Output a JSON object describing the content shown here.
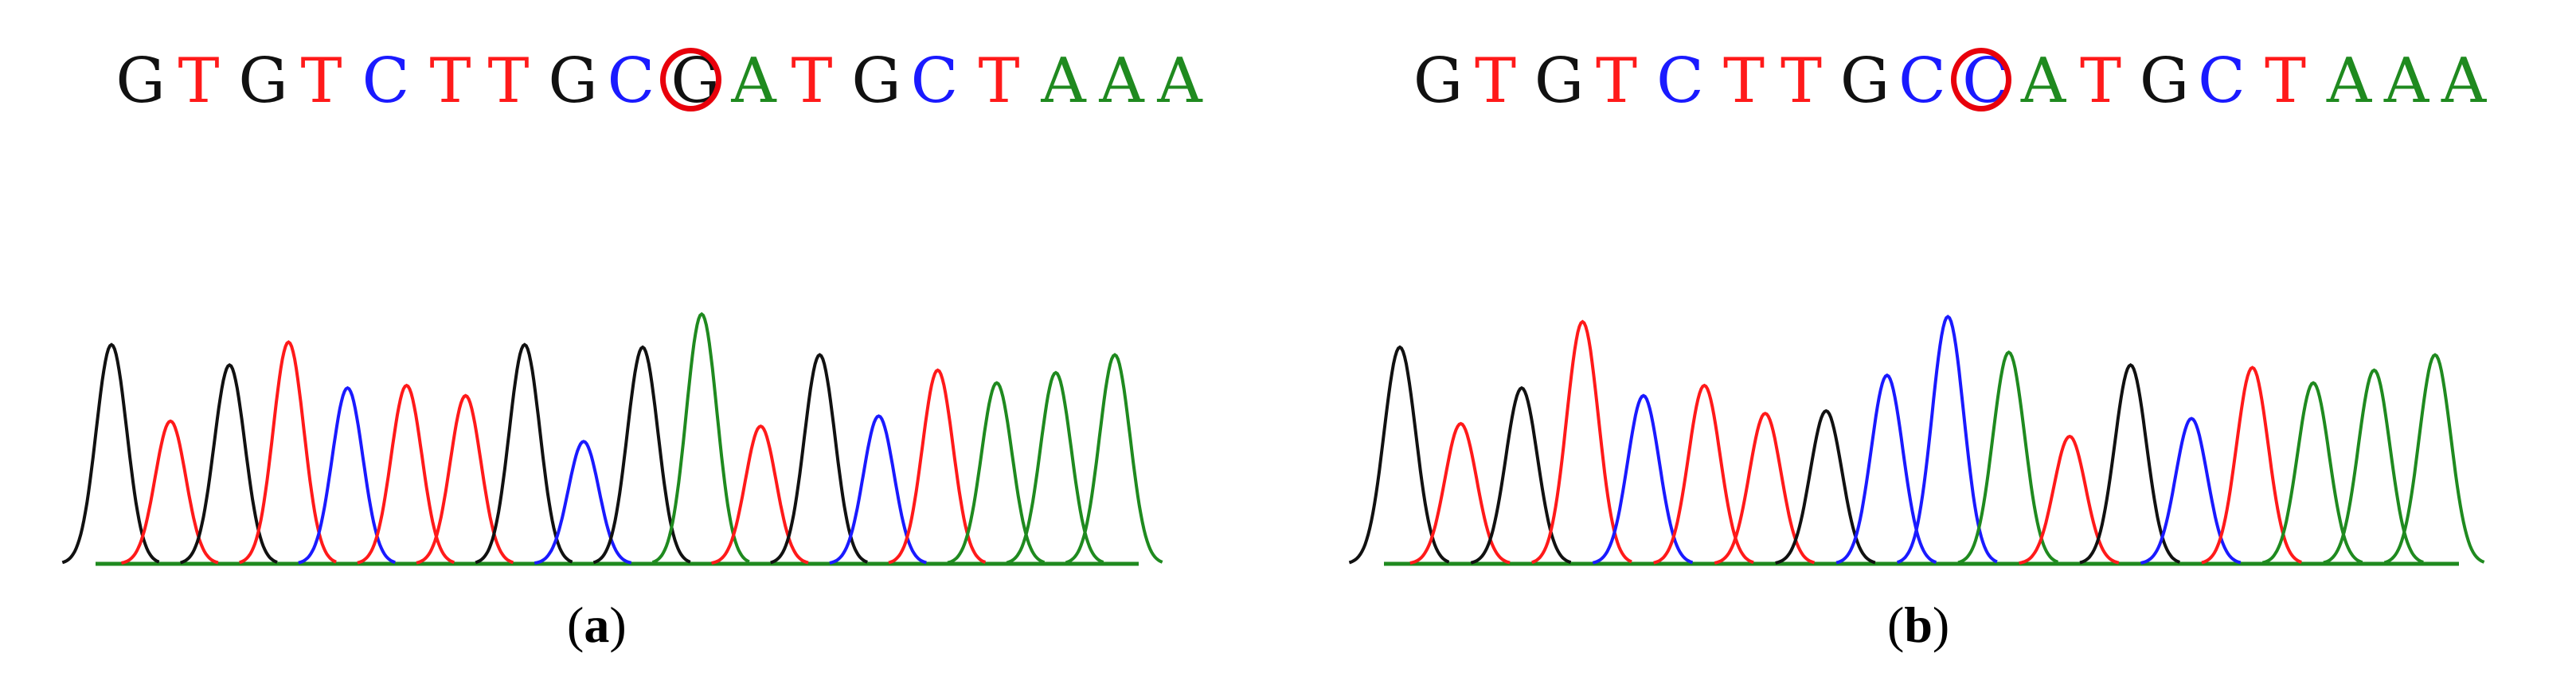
{
  "colors": {
    "A": "#1f8a1f",
    "C": "#1a1aff",
    "G": "#111111",
    "T": "#ff1a1a",
    "mark": "#e8000b"
  },
  "panels": [
    {
      "caption_open": "(",
      "caption_letter": "a",
      "caption_close": ")",
      "bases": [
        "G",
        "T",
        "G",
        "T",
        "C",
        "T",
        "T",
        "G",
        "C",
        "G",
        "A",
        "T",
        "G",
        "C",
        "T",
        "A",
        "A",
        "A"
      ],
      "highlight_index": 9,
      "trace_peaks": [
        {
          "base": "G",
          "height": 0.86
        },
        {
          "base": "T",
          "height": 0.56
        },
        {
          "base": "G",
          "height": 0.78
        },
        {
          "base": "T",
          "height": 0.87
        },
        {
          "base": "C",
          "height": 0.69
        },
        {
          "base": "T",
          "height": 0.7
        },
        {
          "base": "T",
          "height": 0.66
        },
        {
          "base": "G",
          "height": 0.86
        },
        {
          "base": "C",
          "height": 0.48
        },
        {
          "base": "G",
          "height": 0.85
        },
        {
          "base": "A",
          "height": 0.98
        },
        {
          "base": "T",
          "height": 0.54
        },
        {
          "base": "G",
          "height": 0.82
        },
        {
          "base": "C",
          "height": 0.58
        },
        {
          "base": "T",
          "height": 0.76
        },
        {
          "base": "A",
          "height": 0.71
        },
        {
          "base": "A",
          "height": 0.75
        },
        {
          "base": "A",
          "height": 0.82
        }
      ]
    },
    {
      "caption_open": "(",
      "caption_letter": "b",
      "caption_close": ")",
      "bases": [
        "G",
        "T",
        "G",
        "T",
        "C",
        "T",
        "T",
        "G",
        "C",
        "C",
        "A",
        "T",
        "G",
        "C",
        "T",
        "A",
        "A",
        "A"
      ],
      "highlight_index": 9,
      "trace_peaks": [
        {
          "base": "G",
          "height": 0.85
        },
        {
          "base": "T",
          "height": 0.55
        },
        {
          "base": "G",
          "height": 0.69
        },
        {
          "base": "T",
          "height": 0.95
        },
        {
          "base": "C",
          "height": 0.66
        },
        {
          "base": "T",
          "height": 0.7
        },
        {
          "base": "T",
          "height": 0.59
        },
        {
          "base": "G",
          "height": 0.6
        },
        {
          "base": "C",
          "height": 0.74
        },
        {
          "base": "C",
          "height": 0.97
        },
        {
          "base": "A",
          "height": 0.83
        },
        {
          "base": "T",
          "height": 0.5
        },
        {
          "base": "G",
          "height": 0.78
        },
        {
          "base": "C",
          "height": 0.57
        },
        {
          "base": "T",
          "height": 0.77
        },
        {
          "base": "A",
          "height": 0.71
        },
        {
          "base": "A",
          "height": 0.76
        },
        {
          "base": "A",
          "height": 0.82
        }
      ]
    }
  ]
}
